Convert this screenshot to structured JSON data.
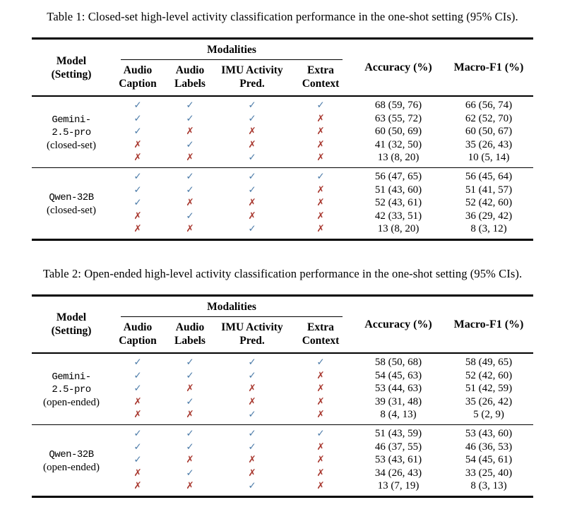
{
  "columns": {
    "model_line1": "Model",
    "model_line2": "(Setting)",
    "modalities_group": "Modalities",
    "modalities": [
      {
        "line1": "Audio",
        "line2": "Caption"
      },
      {
        "line1": "Audio",
        "line2": "Labels"
      },
      {
        "line1": "IMU Activity",
        "line2": "Pred."
      },
      {
        "line1": "Extra",
        "line2": "Context"
      }
    ],
    "accuracy": "Accuracy (%)",
    "macro_f1": "Macro-F1 (%)"
  },
  "glyphs": {
    "check": "✓",
    "cross": "✗"
  },
  "colors": {
    "check": "#4d7ca9",
    "cross": "#a93a31",
    "rule": "#000000",
    "text": "#000000",
    "background": "#ffffff"
  },
  "tables": [
    {
      "caption": "Table 1: Closed-set high-level activity classification performance in the one-shot setting (95% CIs).",
      "blocks": [
        {
          "model_lines": [
            "Gemini-",
            "2.5-pro"
          ],
          "setting": "(closed-set)",
          "rows": [
            {
              "marks": [
                true,
                true,
                true,
                true
              ],
              "accuracy": "68 (59, 76)",
              "macro_f1": "66 (56, 74)"
            },
            {
              "marks": [
                true,
                true,
                true,
                false
              ],
              "accuracy": "63 (55, 72)",
              "macro_f1": "62 (52, 70)"
            },
            {
              "marks": [
                true,
                false,
                false,
                false
              ],
              "accuracy": "60 (50, 69)",
              "macro_f1": "60 (50, 67)"
            },
            {
              "marks": [
                false,
                true,
                false,
                false
              ],
              "accuracy": "41 (32, 50)",
              "macro_f1": "35 (26, 43)"
            },
            {
              "marks": [
                false,
                false,
                true,
                false
              ],
              "accuracy": "13 (8, 20)",
              "macro_f1": "10 (5, 14)"
            }
          ]
        },
        {
          "model_lines": [
            "Qwen-32B"
          ],
          "setting": "(closed-set)",
          "rows": [
            {
              "marks": [
                true,
                true,
                true,
                true
              ],
              "accuracy": "56 (47, 65)",
              "macro_f1": "56 (45, 64)"
            },
            {
              "marks": [
                true,
                true,
                true,
                false
              ],
              "accuracy": "51 (43, 60)",
              "macro_f1": "51 (41, 57)"
            },
            {
              "marks": [
                true,
                false,
                false,
                false
              ],
              "accuracy": "52 (43, 61)",
              "macro_f1": "52 (42, 60)"
            },
            {
              "marks": [
                false,
                true,
                false,
                false
              ],
              "accuracy": "42 (33, 51)",
              "macro_f1": "36 (29, 42)"
            },
            {
              "marks": [
                false,
                false,
                true,
                false
              ],
              "accuracy": "13 (8, 20)",
              "macro_f1": "8 (3, 12)"
            }
          ]
        }
      ]
    },
    {
      "caption": "Table 2: Open-ended high-level activity classification performance in the one-shot setting (95% CIs).",
      "blocks": [
        {
          "model_lines": [
            "Gemini-",
            "2.5-pro"
          ],
          "setting": "(open-ended)",
          "rows": [
            {
              "marks": [
                true,
                true,
                true,
                true
              ],
              "accuracy": "58 (50, 68)",
              "macro_f1": "58 (49, 65)"
            },
            {
              "marks": [
                true,
                true,
                true,
                false
              ],
              "accuracy": "54 (45, 63)",
              "macro_f1": "52 (42, 60)"
            },
            {
              "marks": [
                true,
                false,
                false,
                false
              ],
              "accuracy": "53 (44, 63)",
              "macro_f1": "51 (42, 59)"
            },
            {
              "marks": [
                false,
                true,
                false,
                false
              ],
              "accuracy": "39 (31, 48)",
              "macro_f1": "35 (26, 42)"
            },
            {
              "marks": [
                false,
                false,
                true,
                false
              ],
              "accuracy": "8 (4, 13)",
              "macro_f1": "5 (2, 9)"
            }
          ]
        },
        {
          "model_lines": [
            "Qwen-32B"
          ],
          "setting": "(open-ended)",
          "rows": [
            {
              "marks": [
                true,
                true,
                true,
                true
              ],
              "accuracy": "51 (43, 59)",
              "macro_f1": "53 (43, 60)"
            },
            {
              "marks": [
                true,
                true,
                true,
                false
              ],
              "accuracy": "46 (37, 55)",
              "macro_f1": "46 (36, 53)"
            },
            {
              "marks": [
                true,
                false,
                false,
                false
              ],
              "accuracy": "53 (43, 61)",
              "macro_f1": "54 (45, 61)"
            },
            {
              "marks": [
                false,
                true,
                false,
                false
              ],
              "accuracy": "34 (26, 43)",
              "macro_f1": "33 (25, 40)"
            },
            {
              "marks": [
                false,
                false,
                true,
                false
              ],
              "accuracy": "13 (7, 19)",
              "macro_f1": "8 (3, 13)"
            }
          ]
        }
      ]
    }
  ]
}
